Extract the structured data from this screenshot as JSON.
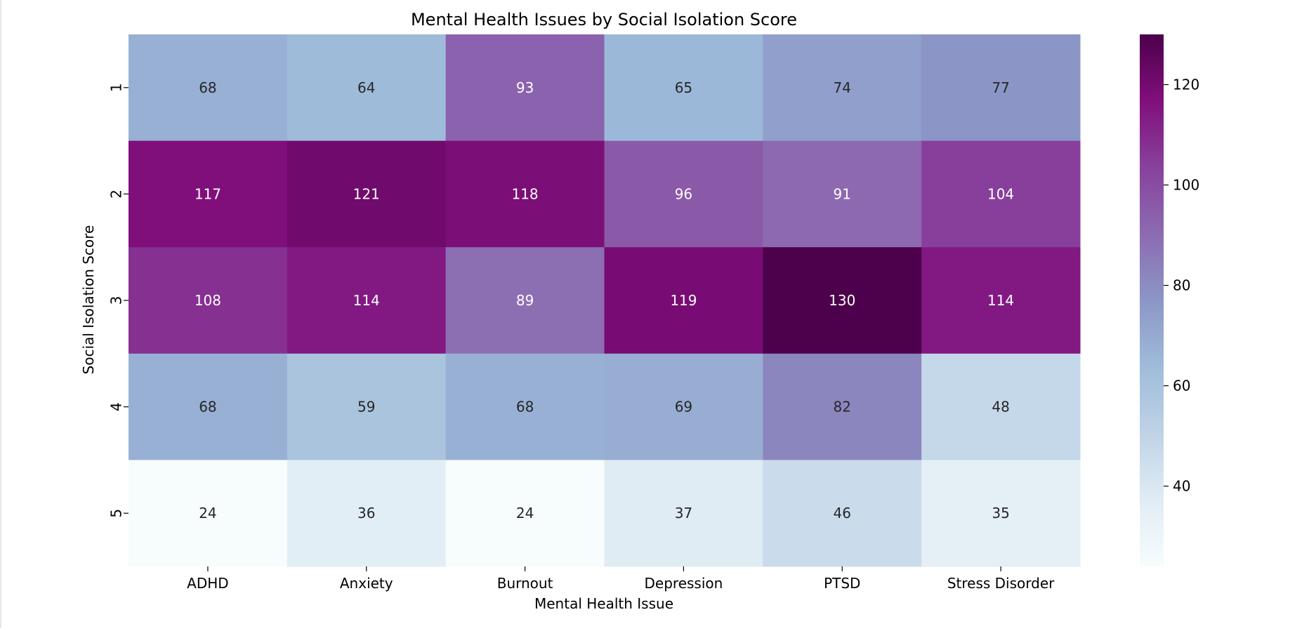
{
  "chart_data": {
    "type": "heatmap",
    "title": "Mental Health Issues by Social Isolation Score",
    "xlabel": "Mental Health Issue",
    "ylabel": "Social Isolation Score",
    "x_categories": [
      "ADHD",
      "Anxiety",
      "Burnout",
      "Depression",
      "PTSD",
      "Stress Disorder"
    ],
    "y_categories": [
      "1",
      "2",
      "3",
      "4",
      "5"
    ],
    "values": [
      [
        68,
        64,
        93,
        65,
        74,
        77
      ],
      [
        117,
        121,
        118,
        96,
        91,
        104
      ],
      [
        108,
        114,
        89,
        119,
        130,
        114
      ],
      [
        68,
        59,
        68,
        69,
        82,
        48
      ],
      [
        24,
        36,
        24,
        37,
        46,
        35
      ]
    ],
    "colorbar": {
      "vmin": 24,
      "vmax": 130,
      "ticks": [
        40,
        60,
        80,
        100,
        120
      ],
      "colormap": "BuPu",
      "colors": [
        "#f7fcfd",
        "#e0ecf4",
        "#bfd3e6",
        "#9ebcda",
        "#8c96c6",
        "#8c6bb1",
        "#88419d",
        "#810f7c",
        "#4d004b"
      ]
    },
    "annotation_colors": {
      "dark": "#262626",
      "light": "#ffffff"
    }
  }
}
